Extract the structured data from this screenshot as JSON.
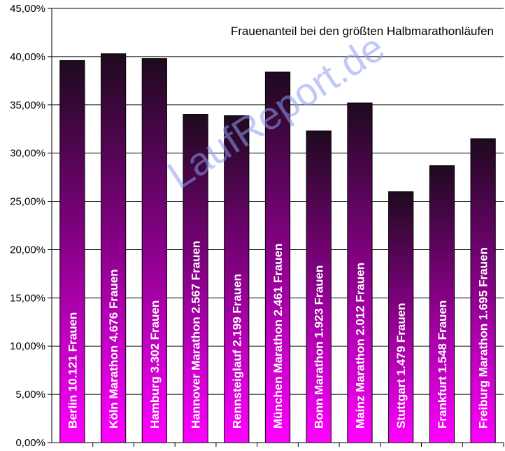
{
  "chart_data": {
    "type": "bar",
    "title": "Frauenanteil bei den größten Halbmarathonläufen",
    "xlabel": "",
    "ylabel": "",
    "ylim": [
      0,
      45
    ],
    "ytick_step": 5,
    "ytick_labels": [
      "0,00%",
      "5,00%",
      "10,00%",
      "15,00%",
      "20,00%",
      "25,00%",
      "30,00%",
      "35,00%",
      "40,00%",
      "45,00%"
    ],
    "grid": true,
    "legend": "none",
    "watermark": "LaufReport.de",
    "categories": [
      "Berlin  10.121  Frauen",
      "Köln Marathon  4.676  Frauen",
      "Hamburg  3.302  Frauen",
      "Hannover Marathon  2.567  Frauen",
      "Rennsteiglauf  2.199  Frauen",
      "München Marathon  2.461  Frauen",
      "Bonn Marathon  1.923  Frauen",
      "Mainz Marathon  2.012  Frauen",
      "Stuttgart  1.479  Frauen",
      "Frankfurt  1.548  Frauen",
      "Freiburg Marathon  1.695  Frauen"
    ],
    "values": [
      39.6,
      40.3,
      39.8,
      34.0,
      33.9,
      38.4,
      32.3,
      35.2,
      26.0,
      28.7,
      31.5
    ],
    "colors": {
      "bar_top": "#1e0a1e",
      "bar_mid": "#8a008a",
      "bar_bottom": "#ff00ff",
      "grid": "#000000"
    }
  }
}
